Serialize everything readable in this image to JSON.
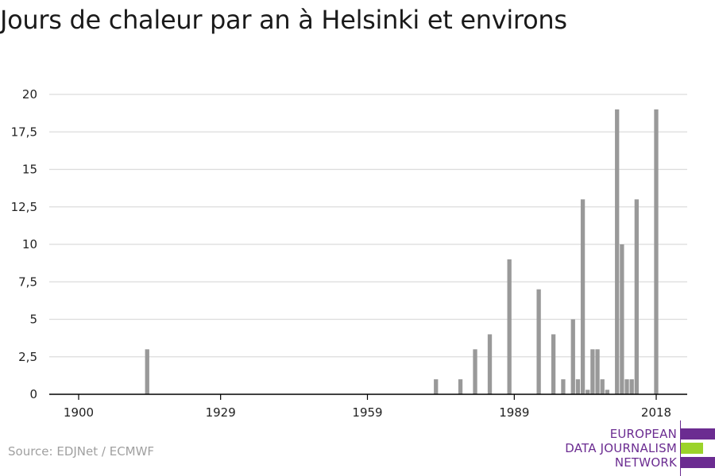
{
  "page": {
    "title": "Jours de chaleur par an à Helsinki et environs",
    "source": "Source: EDJNet / ECMWF"
  },
  "logo": {
    "line1": "EUROPEAN",
    "line2": "DATA JOURNALISM",
    "line3": "NETWORK",
    "colors": [
      "#6b2c91",
      "#9bd32a",
      "#6b2c91"
    ]
  },
  "chart_data": {
    "type": "bar",
    "title": "Jours de chaleur par an à Helsinki et environs",
    "xlabel": "",
    "ylabel": "",
    "xlim": [
      1900,
      2018
    ],
    "ylim": [
      0,
      20
    ],
    "x_ticks": [
      "1900",
      "1929",
      "1959",
      "1989",
      "2018"
    ],
    "y_ticks": [
      "0",
      "2,5",
      "5",
      "7,5",
      "10",
      "12,5",
      "15",
      "17,5",
      "20"
    ],
    "grid": true,
    "bar_color": "#999999",
    "x": [
      1914,
      1973,
      1978,
      1981,
      1984,
      1988,
      1994,
      1997,
      1999,
      2001,
      2002,
      2003,
      2004,
      2005,
      2006,
      2007,
      2008,
      2010,
      2011,
      2012,
      2013,
      2014,
      2018
    ],
    "values": [
      3,
      1,
      1,
      3,
      4,
      9,
      7,
      4,
      1,
      5,
      1,
      13,
      0.3,
      3,
      3,
      1,
      0.3,
      19,
      10,
      1,
      1,
      13,
      19
    ]
  }
}
